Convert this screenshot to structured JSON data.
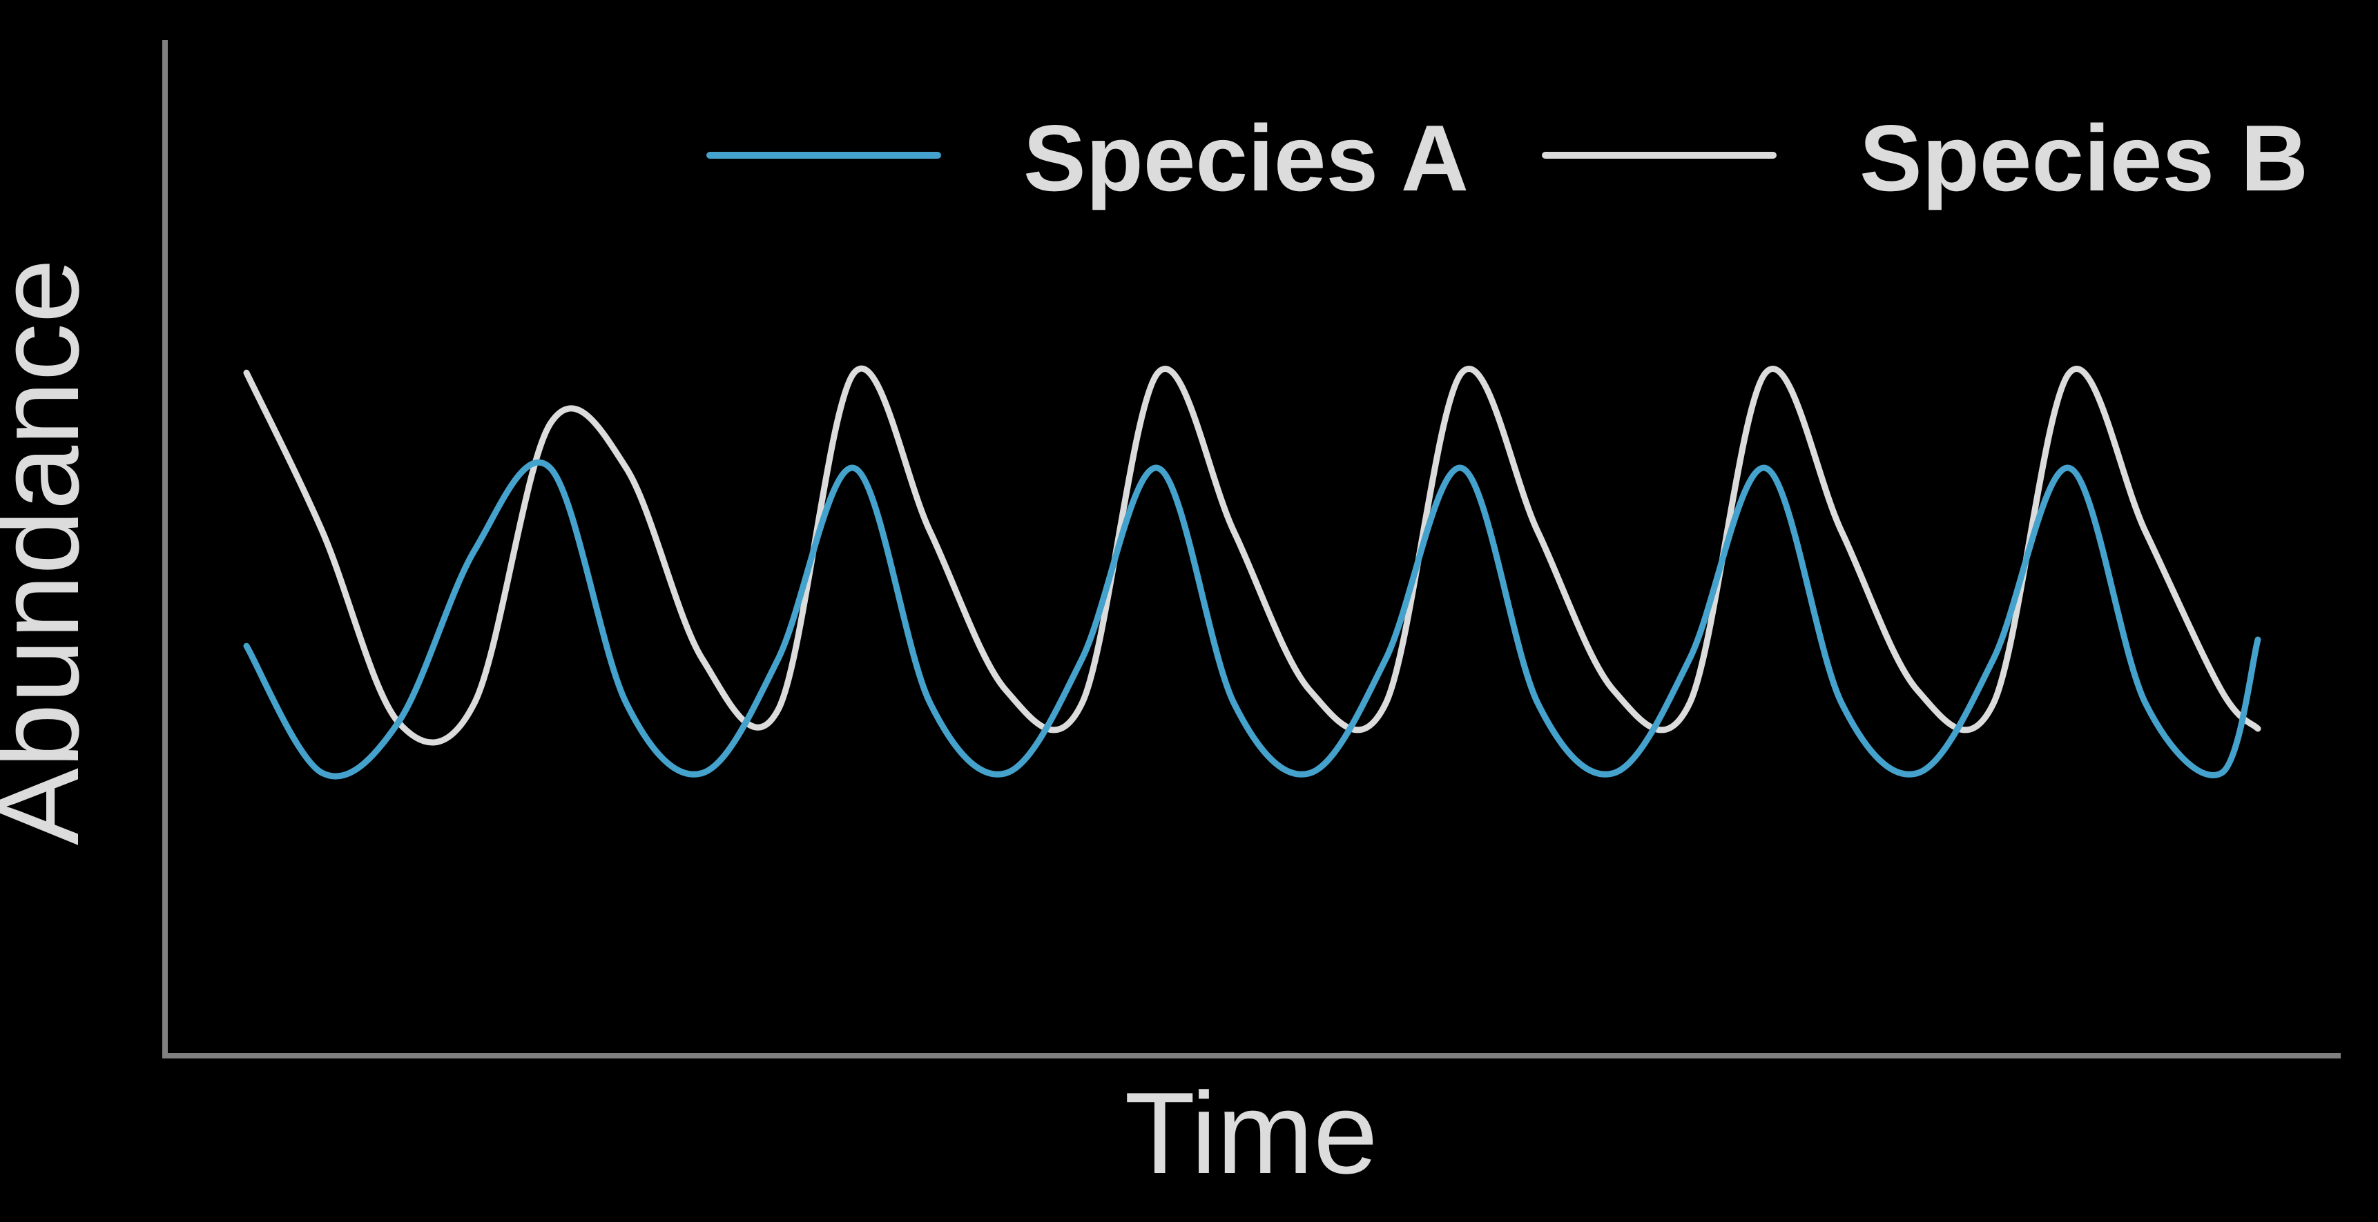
{
  "chart_data": {
    "type": "line",
    "title": "",
    "xlabel": "Time",
    "ylabel": "Abundance",
    "grid": false,
    "legend_position": "top-right",
    "xlim": [
      0,
      6.62
    ],
    "ylim": [
      0,
      1
    ],
    "x": [
      0.0,
      0.25,
      0.5,
      0.75,
      1.0,
      1.25,
      1.5,
      1.75,
      2.0,
      2.25,
      2.5,
      2.75,
      3.0,
      3.25,
      3.5,
      3.75,
      4.0,
      4.25,
      4.5,
      4.75,
      5.0,
      5.25,
      5.5,
      5.75,
      6.0,
      6.25,
      6.5,
      6.62
    ],
    "series": [
      {
        "name": "Species A",
        "color": "#44a2cd",
        "values": [
          0.37,
          0.17,
          0.25,
          0.52,
          0.65,
          0.28,
          0.17,
          0.35,
          0.65,
          0.28,
          0.17,
          0.35,
          0.65,
          0.28,
          0.17,
          0.35,
          0.65,
          0.28,
          0.17,
          0.35,
          0.65,
          0.28,
          0.17,
          0.35,
          0.65,
          0.28,
          0.17,
          0.38
        ]
      },
      {
        "name": "Species B",
        "color": "#dcdcdc",
        "values": [
          0.8,
          0.55,
          0.25,
          0.28,
          0.72,
          0.65,
          0.35,
          0.27,
          0.8,
          0.55,
          0.3,
          0.28,
          0.8,
          0.55,
          0.3,
          0.28,
          0.8,
          0.55,
          0.3,
          0.28,
          0.8,
          0.55,
          0.3,
          0.28,
          0.8,
          0.55,
          0.3,
          0.24
        ]
      }
    ],
    "axis_color": "#808080"
  }
}
